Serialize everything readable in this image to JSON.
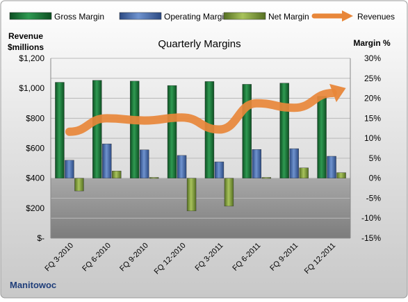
{
  "chart_data": {
    "type": "bar",
    "title": "Quarterly Margins",
    "company": "Manitowoc",
    "left_axis_label": [
      "Revenue",
      "$millions"
    ],
    "right_axis_label": "Margin %",
    "categories": [
      "FQ 3-2010",
      "FQ 6-2010",
      "FQ 9-2010",
      "FQ 12-2010",
      "FQ 3-2011",
      "FQ 6-2011",
      "FQ 9-2011",
      "FQ 12-2011"
    ],
    "series": [
      {
        "name": "Gross Margin",
        "axis": "right",
        "kind": "bar",
        "color": "#1f7a3c",
        "values": [
          24,
          24.5,
          24.3,
          23.2,
          24.2,
          23.5,
          23.8,
          20.5
        ]
      },
      {
        "name": "Operating Margin",
        "axis": "right",
        "kind": "bar",
        "color": "#4a6fae",
        "values": [
          4.5,
          8.6,
          7.1,
          5.7,
          4.1,
          7.2,
          7.4,
          5.5
        ]
      },
      {
        "name": "Net Margin",
        "axis": "right",
        "kind": "bar",
        "color": "#7a9a3a",
        "values": [
          -3.2,
          1.8,
          0.2,
          -8.2,
          -7,
          0.2,
          2.6,
          1.4
        ]
      },
      {
        "name": "Revenues",
        "axis": "left",
        "kind": "line",
        "color": "#e8873a",
        "values": [
          710,
          800,
          785,
          805,
          725,
          900,
          870,
          965
        ]
      }
    ],
    "left_axis": {
      "min": 0,
      "max": 1200,
      "ticks": [
        "$-",
        "$200",
        "$400",
        "$600",
        "$800",
        "$1,000",
        "$1,200"
      ]
    },
    "right_axis": {
      "min": -15,
      "max": 30,
      "ticks": [
        "-15%",
        "-10%",
        "-5%",
        "0%",
        "5%",
        "10%",
        "15%",
        "20%",
        "25%",
        "30%"
      ]
    },
    "grid": true,
    "legend_position": "top"
  }
}
